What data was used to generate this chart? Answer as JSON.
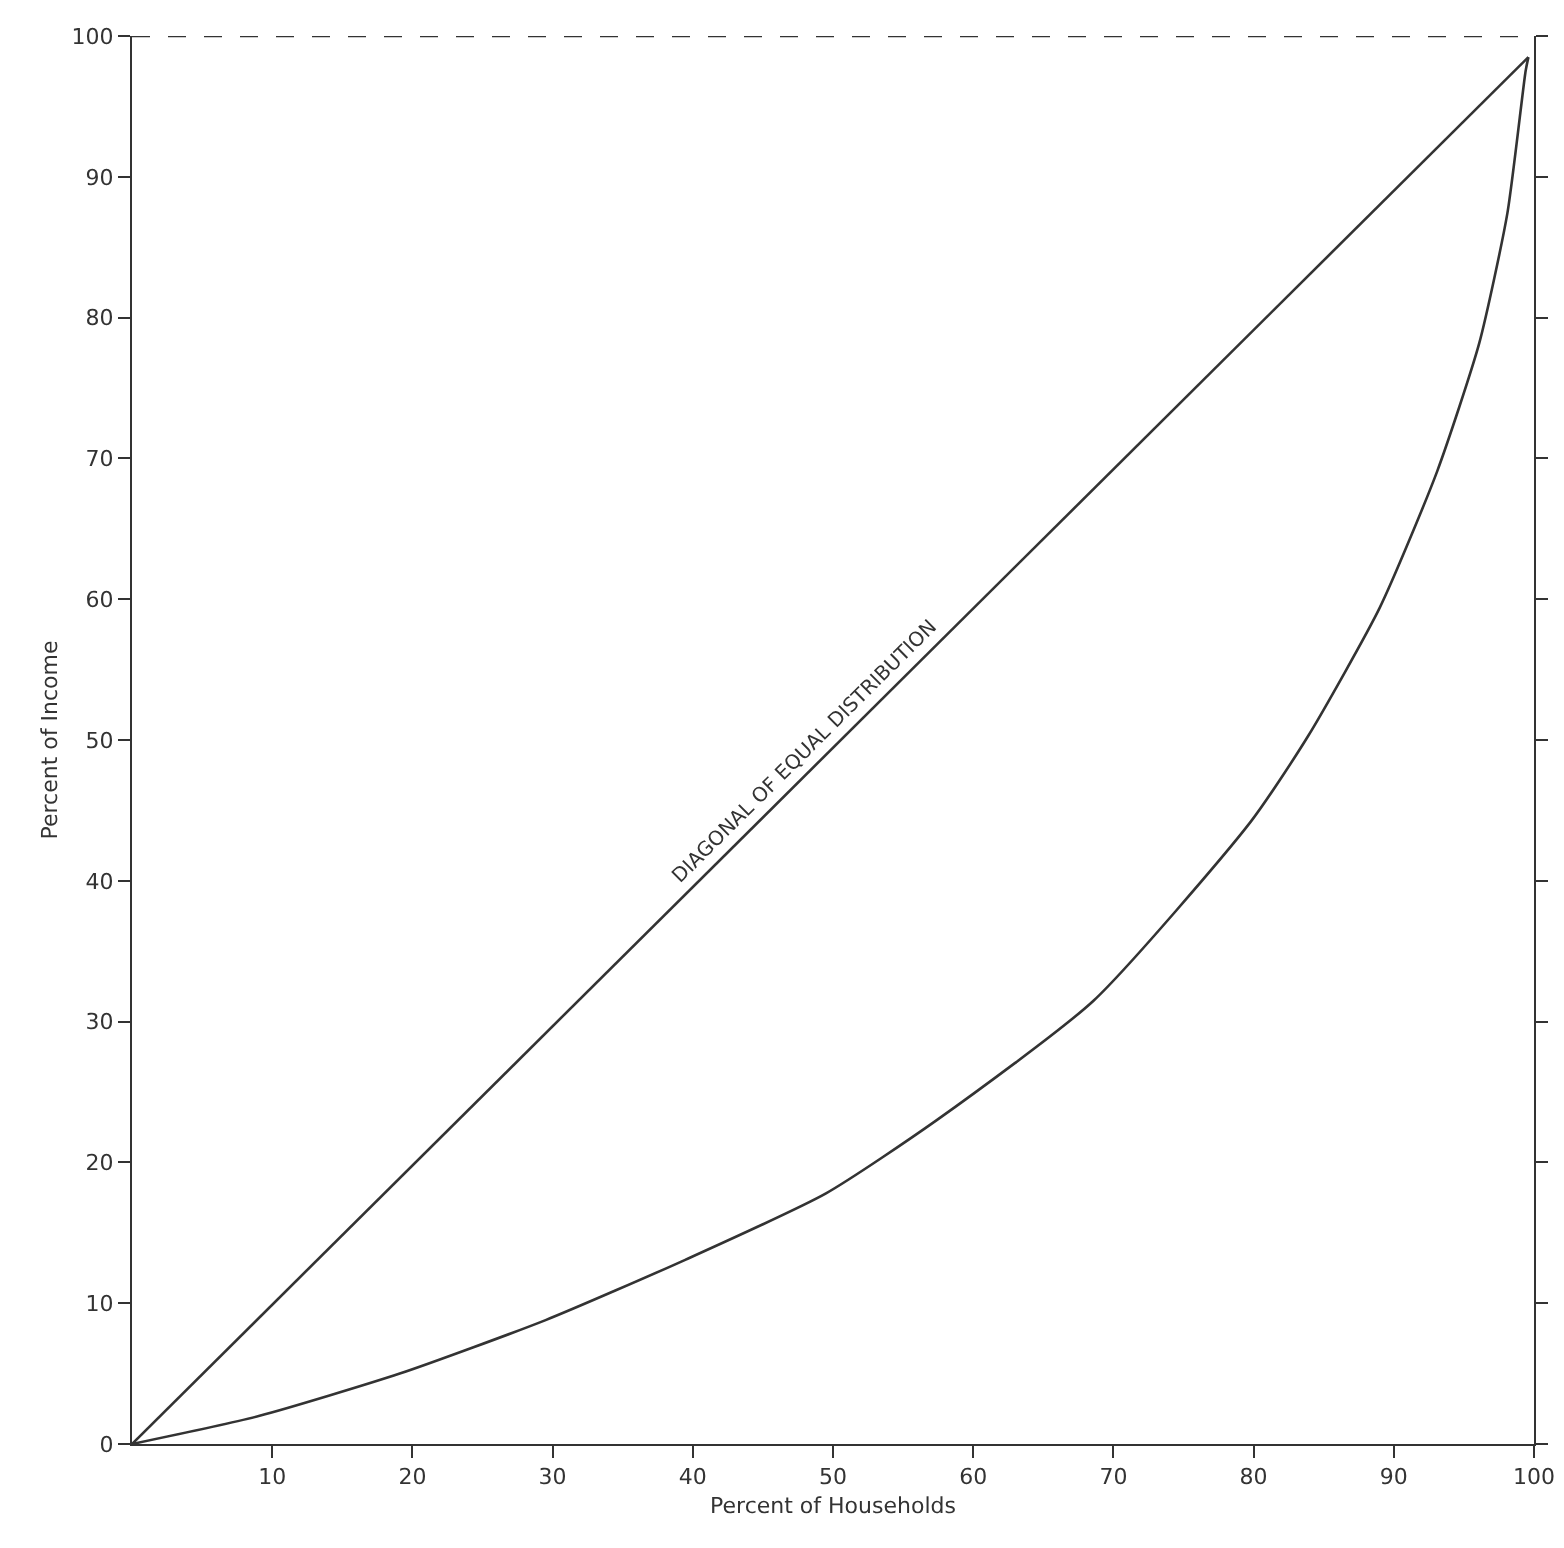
{
  "chart_data": {
    "type": "line",
    "xlabel": "Percent of Households",
    "ylabel": "Percent of Income",
    "xlim": [
      0,
      100
    ],
    "ylim": [
      0,
      100
    ],
    "xticks": [
      10,
      20,
      30,
      40,
      50,
      60,
      70,
      80,
      90,
      100
    ],
    "yticks": [
      0,
      10,
      20,
      30,
      40,
      50,
      60,
      70,
      80,
      90,
      100
    ],
    "marker": "none",
    "line_style": "solid",
    "series": [
      {
        "color": "#333333",
        "x": [
          0,
          9.1,
          19.1,
          29.5,
          39.5,
          49.5,
          57.4,
          68.6,
          79.8,
          83.9,
          89,
          93.1,
          96.1,
          98.1,
          99.4,
          99.6
        ],
        "values": [
          0,
          2,
          5,
          8.8,
          13.1,
          17.8,
          23,
          31.5,
          44.2,
          50.3,
          59.4,
          69.1,
          78.2,
          87.4,
          97.5,
          98.5
        ]
      },
      {
        "color": "#333333",
        "x": [
          0,
          99.6
        ],
        "values": [
          0,
          98.5
        ]
      }
    ],
    "ref_lines": [
      {
        "axis": "y",
        "value": 100,
        "color": "#333333",
        "line_style": "dashed"
      }
    ],
    "annotations": [
      {
        "text": "DIAGONAL OF EQUAL DISTRIBUTION",
        "x": 49,
        "y": 48.3
      }
    ]
  }
}
